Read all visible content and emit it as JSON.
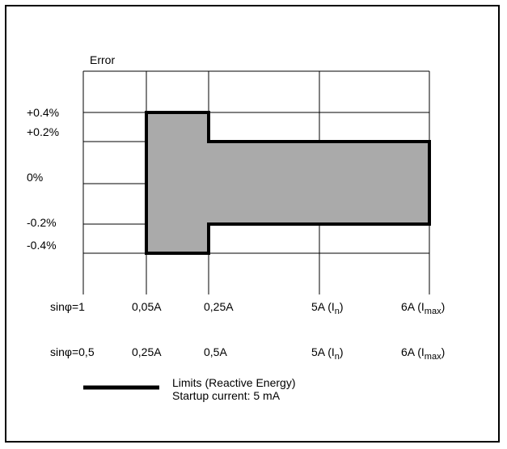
{
  "chart_data": {
    "type": "other",
    "ylabel": "Error",
    "y_tick_labels": [
      "+0.4%",
      "+0.2%",
      "0%",
      "-0.2%",
      "-0.4%"
    ],
    "x_rows": [
      {
        "label": "sinφ=1",
        "ticks": [
          {
            "main": "0,05A",
            "sub": ""
          },
          {
            "main": "0,25A",
            "sub": ""
          },
          {
            "main": "5A (I",
            "sub": "n",
            "suffix": ")"
          },
          {
            "main": "6A (I",
            "sub": "max",
            "suffix": ")"
          }
        ]
      },
      {
        "label": "sinφ=0,5",
        "ticks": [
          {
            "main": "0,25A",
            "sub": ""
          },
          {
            "main": "0,5A",
            "sub": ""
          },
          {
            "main": "5A (I",
            "sub": "n",
            "suffix": ")"
          },
          {
            "main": "6A (I",
            "sub": "max",
            "suffix": ")"
          }
        ]
      }
    ],
    "limit_shape": {
      "segments": [
        {
          "from_tick": 0,
          "to_tick": 1,
          "upper": 0.4,
          "lower": -0.4
        },
        {
          "from_tick": 1,
          "to_tick": 3,
          "upper": 0.2,
          "lower": -0.2
        }
      ]
    },
    "legend": {
      "line1": "Limits (Reactive Energy)",
      "line2": "Startup current: 5 mA"
    },
    "fill_color": "#aaaaaa",
    "line_color": "#000000"
  }
}
